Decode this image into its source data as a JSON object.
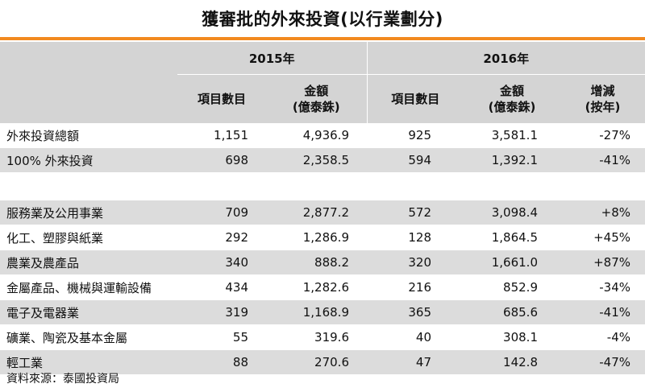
{
  "title": "獲審批的外來投資(以行業劃分)",
  "header": {
    "year_2015": "2015年",
    "year_2016": "2016年",
    "items_2015": "項目數目",
    "amount_2015_l1": "金額",
    "amount_2015_l2": "(億泰銖)",
    "items_2016": "項目數目",
    "amount_2016_l1": "金額",
    "amount_2016_l2": "(億泰銖)",
    "change_l1": "增減",
    "change_l2": "(按年)"
  },
  "rows": [
    {
      "label": "外來投資總額",
      "items2015": "1,151",
      "amount2015": "4,936.9",
      "items2016": "925",
      "amount2016": "3,581.1",
      "change": "-27%"
    },
    {
      "label": "100% 外來投資",
      "items2015": "698",
      "amount2015": "2,358.5",
      "items2016": "594",
      "amount2016": "1,392.1",
      "change": "-41%"
    },
    {
      "label": "服務業及公用事業",
      "items2015": "709",
      "amount2015": "2,877.2",
      "items2016": "572",
      "amount2016": "3,098.4",
      "change": "+8%"
    },
    {
      "label": "化工、塑膠與紙業",
      "items2015": "292",
      "amount2015": "1,286.9",
      "items2016": "128",
      "amount2016": "1,864.5",
      "change": "+45%"
    },
    {
      "label": "農業及農產品",
      "items2015": "340",
      "amount2015": "888.2",
      "items2016": "320",
      "amount2016": "1,661.0",
      "change": "+87%"
    },
    {
      "label": "金屬產品、機械與運輸設備",
      "items2015": "434",
      "amount2015": "1,282.6",
      "items2016": "216",
      "amount2016": "852.9",
      "change": "-34%"
    },
    {
      "label": "電子及電器業",
      "items2015": "319",
      "amount2015": "1,168.9",
      "items2016": "365",
      "amount2016": "685.6",
      "change": "-41%"
    },
    {
      "label": "礦業、陶瓷及基本金屬",
      "items2015": "55",
      "amount2015": "319.6",
      "items2016": "40",
      "amount2016": "308.1",
      "change": "-4%"
    },
    {
      "label": "輕工業",
      "items2015": "88",
      "amount2015": "270.6",
      "items2016": "47",
      "amount2016": "142.8",
      "change": "-47%"
    }
  ],
  "source": "資料來源：泰國投資局",
  "colors": {
    "accent": "#f28a1f",
    "header_bg": "#d4d4d4",
    "alt_row_bg": "#dcdcdc"
  }
}
